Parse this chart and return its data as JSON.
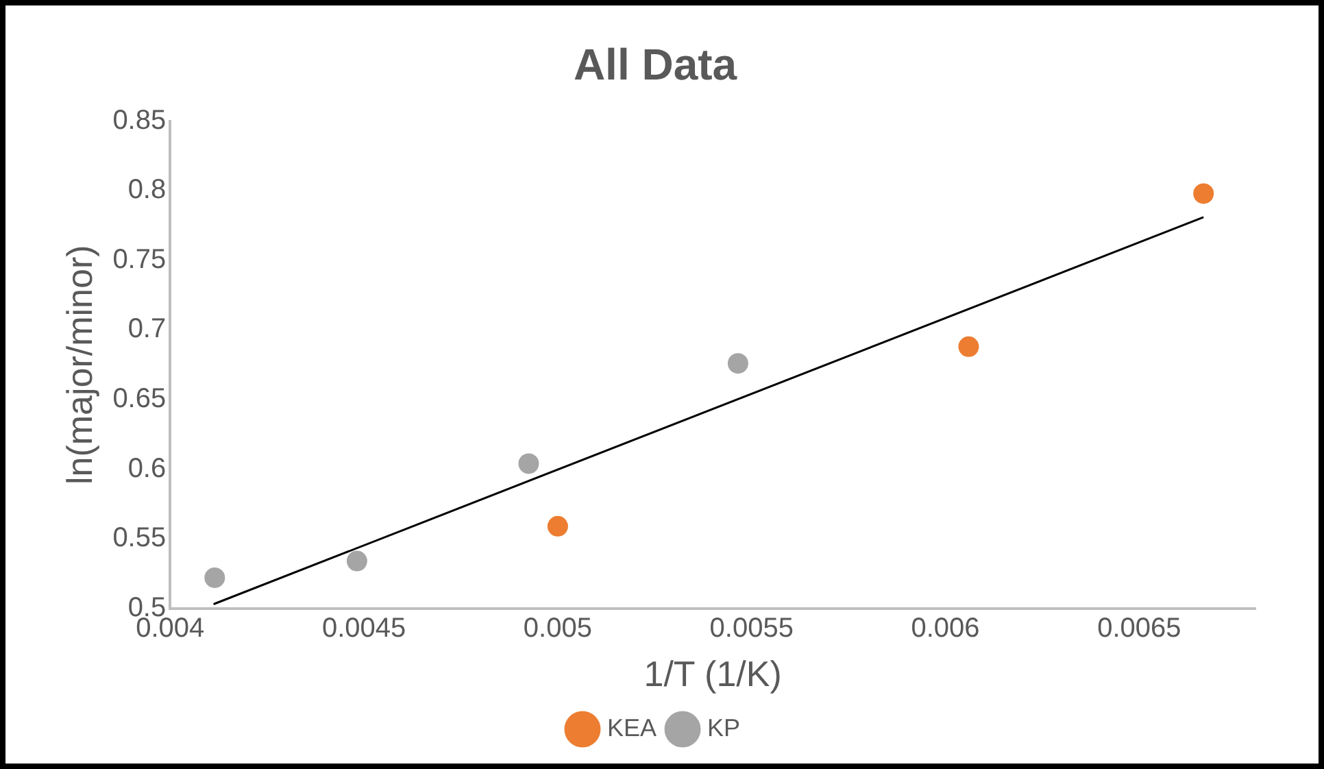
{
  "chart_data": {
    "type": "scatter",
    "title": "All Data",
    "xlabel": "1/T (1/K)",
    "ylabel": "ln(major/minor)",
    "xlim": [
      0.004,
      0.0068
    ],
    "xticks": [
      0.004,
      0.0045,
      0.005,
      0.0055,
      0.006,
      0.0065
    ],
    "ylim": [
      0.5,
      0.85
    ],
    "yticks": [
      0.5,
      0.55,
      0.6,
      0.65,
      0.7,
      0.75,
      0.8,
      0.85
    ],
    "grid": false,
    "legend": "bottom",
    "marker": "circle",
    "series": [
      {
        "name": "KEA",
        "color": "#ed7d31",
        "x": [
          0.005,
          0.00606,
          0.006666
        ],
        "values": [
          0.559,
          0.688,
          0.798
        ]
      },
      {
        "name": "KP",
        "color": "#a5a5a5",
        "x": [
          0.004115,
          0.004482,
          0.004925,
          0.005465
        ],
        "values": [
          0.522,
          0.534,
          0.604,
          0.676
        ]
      },
      {
        "type": "line",
        "color": "#000000",
        "marker": "none",
        "line_style": "solid",
        "x": [
          0.004112,
          0.006666
        ],
        "values": [
          0.503,
          0.781
        ]
      }
    ]
  }
}
